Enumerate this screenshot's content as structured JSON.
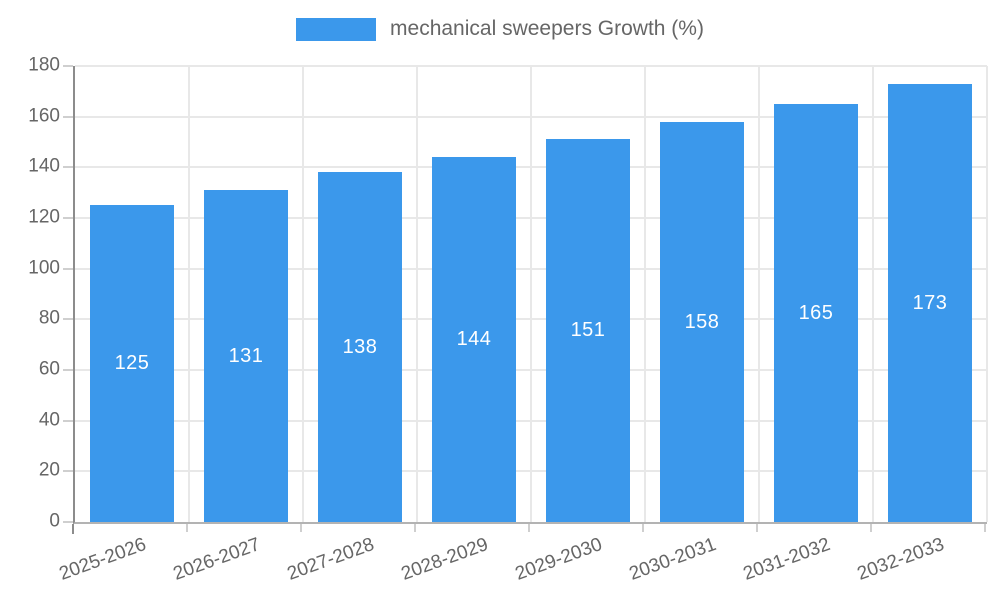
{
  "chart_data": {
    "type": "bar",
    "title": "",
    "legend": "mechanical sweepers Growth (%)",
    "legend_position": "top-center",
    "categories": [
      "2025-2026",
      "2026-2027",
      "2027-2028",
      "2028-2029",
      "2029-2030",
      "2030-2031",
      "2031-2032",
      "2032-2033"
    ],
    "series": [
      {
        "name": "mechanical sweepers Growth (%)",
        "values": [
          125,
          131,
          138,
          144,
          151,
          158,
          165,
          173
        ]
      }
    ],
    "bar_labels": [
      "125",
      "131",
      "138",
      "144",
      "151",
      "158",
      "165",
      "173"
    ],
    "xlabel": "",
    "ylabel": "",
    "ylim": [
      0,
      180
    ],
    "ytick_step": 20,
    "ytick_labels": [
      "0",
      "20",
      "40",
      "60",
      "80",
      "100",
      "120",
      "140",
      "160",
      "180"
    ],
    "grid": "both",
    "colors": {
      "bar": "#3B98EB",
      "value_label": "#ffffff",
      "axis_text": "#666666",
      "grid_line": "#e8e8e8",
      "y_axis_line": "#8c8c8c",
      "x_axis_line": "#b3b3b3",
      "tick": "#cfcfcf",
      "background": "#ffffff"
    }
  }
}
